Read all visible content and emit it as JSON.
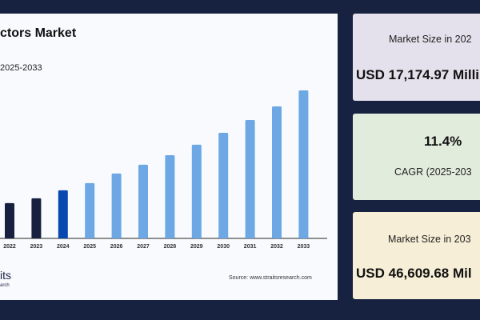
{
  "chart_panel": {
    "title": "ctors Market",
    "subtitle": "2025-2033",
    "source": "Source: www.straitsresearch.com",
    "logo_text": "its",
    "logo_subtext": "arch"
  },
  "chart_data": {
    "type": "bar",
    "categories": [
      "2022",
      "2023",
      "2024",
      "2025",
      "2026",
      "2027",
      "2028",
      "2029",
      "2030",
      "2031",
      "2032",
      "2033"
    ],
    "values": [
      13400,
      14820,
      17174.97,
      19290,
      22120,
      24710,
      27530,
      30600,
      34130,
      37890,
      41900,
      46609.68
    ],
    "ylim": [
      3000,
      46609.68
    ],
    "grid": false,
    "colors": {
      "historical": "#17203e",
      "base_year": "#0a47b0",
      "forecast": "#6ea8e4"
    }
  },
  "cards": [
    {
      "label": "Market Size in 202",
      "value": "USD 17,174.97 Milli",
      "bg": "#e4e0ec"
    },
    {
      "value": "11.4%",
      "label": "CAGR (2025-203",
      "bg": "#e2ecdc"
    },
    {
      "label": "Market Size in 203",
      "value": "USD 46,609.68 Mil",
      "bg": "#f6eed6"
    }
  ]
}
